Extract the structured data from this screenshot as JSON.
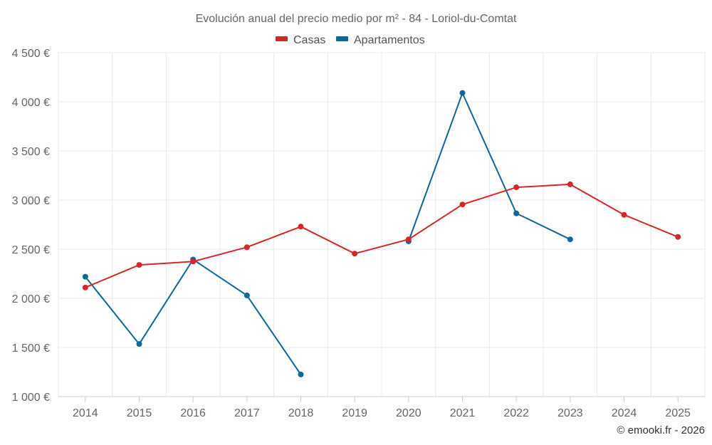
{
  "chart_data": {
    "type": "line",
    "title": "Evolución anual del precio medio por m² - 84 - Loriol-du-Comtat",
    "categories": [
      "2014",
      "2015",
      "2016",
      "2017",
      "2018",
      "2019",
      "2020",
      "2021",
      "2022",
      "2023",
      "2024",
      "2025"
    ],
    "series": [
      {
        "name": "Casas",
        "color": "#d62728",
        "values": [
          2110,
          2340,
          2375,
          2520,
          2730,
          2455,
          2600,
          2955,
          3130,
          3160,
          2850,
          2625
        ]
      },
      {
        "name": "Apartamentos",
        "color": "#0e6699",
        "values": [
          2220,
          1535,
          2395,
          2030,
          1225,
          null,
          2580,
          4090,
          2865,
          2600,
          null,
          null
        ]
      }
    ],
    "y_ticks": [
      "1 000 €",
      "1 500 €",
      "2 000 €",
      "2 500 €",
      "3 000 €",
      "3 500 €",
      "4 000 €",
      "4 500 €"
    ],
    "y_tick_values": [
      1000,
      1500,
      2000,
      2500,
      3000,
      3500,
      4000,
      4500
    ],
    "ylim": [
      1000,
      4500
    ],
    "xlabel": "",
    "ylabel": "",
    "legend": "top-center",
    "grid": true,
    "credit": "© emooki.fr - 2026"
  }
}
